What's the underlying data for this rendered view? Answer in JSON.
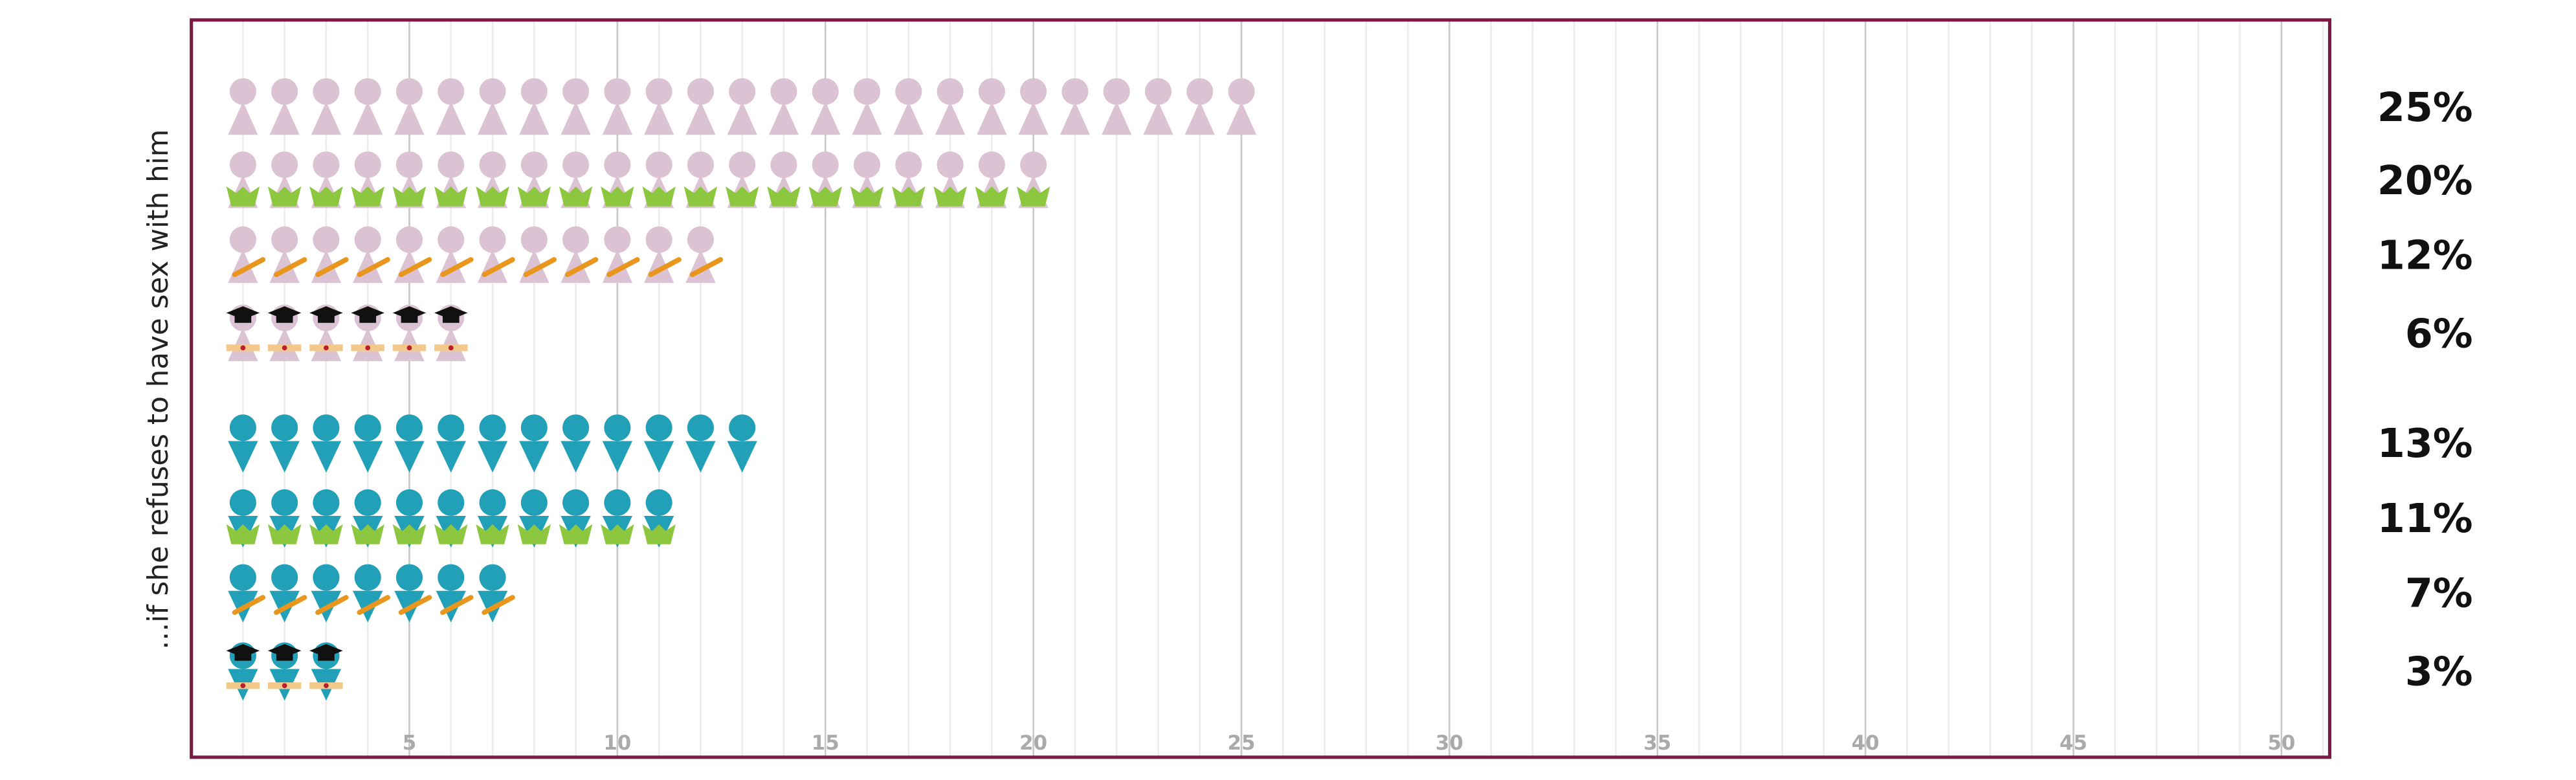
{
  "chart_data": {
    "type": "pictogram",
    "y_label": "...if she refuses to have sex with him",
    "series": [
      {
        "color": "#dcc3d3",
        "values": [
          25,
          20,
          12,
          6
        ],
        "value_labels": [
          "25%",
          "20%",
          "12%",
          "6%"
        ]
      },
      {
        "color": "#21a0b8",
        "values": [
          13,
          11,
          7,
          3
        ],
        "value_labels": [
          "13%",
          "11%",
          "7%",
          "3%"
        ]
      }
    ],
    "xlim": [
      0,
      51.16
    ],
    "xticks": [
      5,
      10,
      15,
      20,
      25,
      30,
      35,
      40,
      45,
      50
    ],
    "grid": true,
    "minor_grid": true,
    "frame_color": "#7a1a45"
  }
}
